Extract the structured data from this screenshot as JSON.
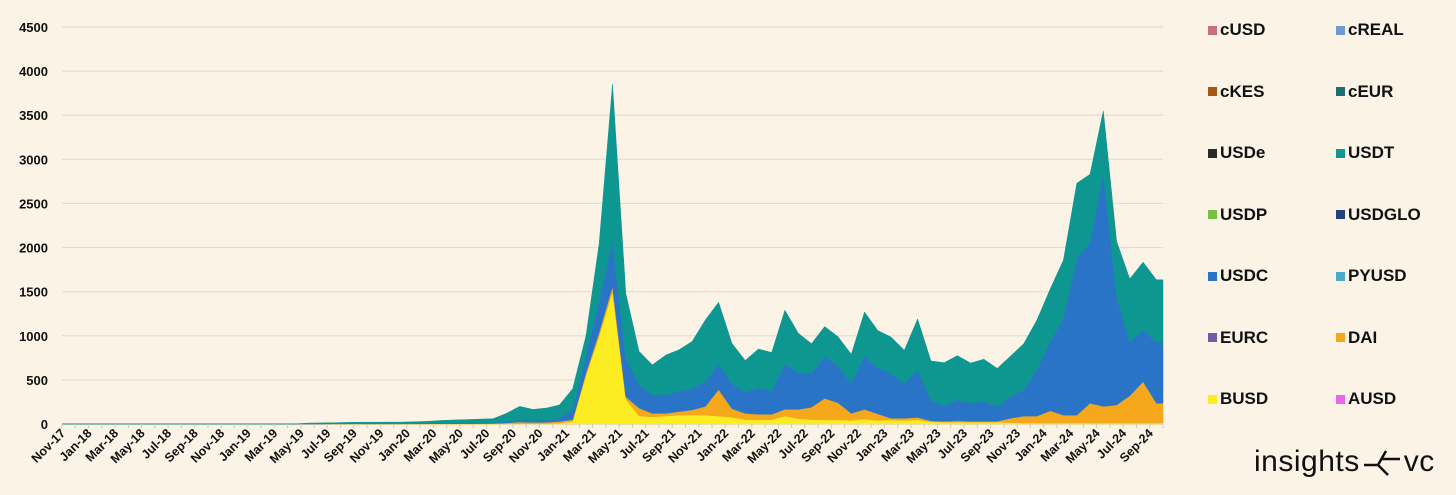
{
  "chart_data": {
    "type": "area",
    "stacked": true,
    "title": "",
    "xlabel": "",
    "ylabel": "",
    "ylim": [
      0,
      4500
    ],
    "yticks": [
      0,
      500,
      1000,
      1500,
      2000,
      2500,
      3000,
      3500,
      4000,
      4500
    ],
    "grid": true,
    "legend_position": "right",
    "start_month": "Nov-17",
    "months": [
      "Nov-17",
      "Dec-17",
      "Jan-18",
      "Feb-18",
      "Mar-18",
      "Apr-18",
      "May-18",
      "Jun-18",
      "Jul-18",
      "Aug-18",
      "Sep-18",
      "Oct-18",
      "Nov-18",
      "Dec-18",
      "Jan-19",
      "Feb-19",
      "Mar-19",
      "Apr-19",
      "May-19",
      "Jun-19",
      "Jul-19",
      "Aug-19",
      "Sep-19",
      "Oct-19",
      "Nov-19",
      "Dec-19",
      "Jan-20",
      "Feb-20",
      "Mar-20",
      "Apr-20",
      "May-20",
      "Jun-20",
      "Jul-20",
      "Aug-20",
      "Sep-20",
      "Oct-20",
      "Nov-20",
      "Dec-20",
      "Jan-21",
      "Feb-21",
      "Mar-21",
      "Apr-21",
      "May-21",
      "Jun-21",
      "Jul-21",
      "Aug-21",
      "Sep-21",
      "Oct-21",
      "Nov-21",
      "Dec-21",
      "Jan-22",
      "Feb-22",
      "Mar-22",
      "Apr-22",
      "May-22",
      "Jun-22",
      "Jul-22",
      "Aug-22",
      "Sep-22",
      "Oct-22",
      "Nov-22",
      "Dec-22",
      "Jan-23",
      "Feb-23",
      "Mar-23",
      "Apr-23",
      "May-23",
      "Jun-23",
      "Jul-23",
      "Aug-23",
      "Sep-23",
      "Oct-23",
      "Nov-23",
      "Dec-23",
      "Jan-24",
      "Feb-24",
      "Mar-24",
      "Apr-24",
      "May-24",
      "Jun-24",
      "Jul-24",
      "Aug-24",
      "Sep-24"
    ],
    "xtick_labels": [
      "Nov-17",
      "Jan-18",
      "Mar-18",
      "May-18",
      "Jul-18",
      "Sep-18",
      "Nov-18",
      "Jan-19",
      "Mar-19",
      "May-19",
      "Jul-19",
      "Sep-19",
      "Nov-19",
      "Jan-20",
      "Mar-20",
      "May-20",
      "Jul-20",
      "Sep-20",
      "Nov-20",
      "Jan-21",
      "Mar-21",
      "May-21",
      "Jul-21",
      "Sep-21",
      "Nov-21",
      "Jan-22",
      "Mar-22",
      "May-22",
      "Jul-22",
      "Sep-22",
      "Nov-22",
      "Jan-23",
      "Mar-23",
      "May-23",
      "Jul-23",
      "Sep-23",
      "Nov-23",
      "Jan-24",
      "Mar-24",
      "May-24",
      "Jul-24",
      "Sep-24"
    ],
    "series": [
      {
        "name": "BUSD",
        "color": "#fced22",
        "values": [
          0,
          0,
          0,
          0,
          0,
          0,
          0,
          0,
          0,
          0,
          0,
          0,
          0,
          0,
          0,
          0,
          0,
          0,
          0,
          0,
          0,
          0,
          0,
          0,
          0,
          0,
          0,
          0,
          0,
          0,
          0,
          0,
          1,
          2,
          3,
          3,
          4,
          8,
          30,
          550,
          1000,
          1500,
          280,
          90,
          80,
          90,
          100,
          100,
          100,
          90,
          75,
          50,
          45,
          50,
          90,
          60,
          50,
          45,
          45,
          40,
          55,
          40,
          45,
          40,
          45,
          25,
          20,
          20,
          20,
          20,
          20,
          15,
          10,
          10,
          10,
          10,
          10,
          10,
          10,
          10,
          10,
          10,
          10
        ]
      },
      {
        "name": "DAI",
        "color": "#f5a81c",
        "values": [
          0,
          0,
          0,
          0,
          0,
          0,
          0,
          0,
          0,
          0,
          0,
          0,
          0,
          0,
          0,
          0,
          0,
          0,
          0,
          0,
          1,
          1,
          1,
          1,
          1,
          1,
          2,
          2,
          3,
          3,
          3,
          4,
          5,
          10,
          20,
          15,
          15,
          20,
          20,
          30,
          40,
          60,
          30,
          90,
          40,
          30,
          40,
          60,
          100,
          300,
          100,
          70,
          65,
          60,
          75,
          105,
          140,
          245,
          195,
          80,
          110,
          75,
          20,
          25,
          30,
          10,
          10,
          15,
          10,
          10,
          10,
          50,
          80,
          80,
          140,
          90,
          90,
          225,
          190,
          205,
          310,
          470,
          225
        ]
      },
      {
        "name": "USDC",
        "color": "#2a74c8",
        "values": [
          0,
          0,
          0,
          0,
          0,
          0,
          0,
          0,
          0,
          0,
          0,
          0,
          0,
          0,
          0,
          0,
          0,
          0,
          1,
          1,
          2,
          2,
          2,
          2,
          3,
          3,
          3,
          4,
          5,
          6,
          7,
          8,
          9,
          15,
          22,
          20,
          25,
          40,
          110,
          200,
          350,
          510,
          440,
          265,
          210,
          210,
          230,
          245,
          280,
          290,
          285,
          240,
          300,
          265,
          515,
          420,
          385,
          475,
          420,
          340,
          605,
          520,
          510,
          390,
          540,
          235,
          175,
          240,
          205,
          225,
          165,
          245,
          295,
          525,
          785,
          1100,
          1780,
          1825,
          2650,
          1230,
          605,
          590,
          690
        ]
      },
      {
        "name": "USDT",
        "color": "#0e9690",
        "values": [
          0,
          0,
          0,
          0,
          0,
          0,
          0,
          0,
          0,
          0,
          0,
          0,
          0,
          0,
          0,
          0,
          0,
          0,
          9,
          11,
          12,
          15,
          17,
          17,
          18,
          18,
          20,
          24,
          32,
          36,
          40,
          43,
          45,
          93,
          155,
          127,
          136,
          147,
          240,
          220,
          660,
          1780,
          730,
          380,
          340,
          450,
          470,
          530,
          700,
          700,
          455,
          360,
          440,
          435,
          610,
          445,
          335,
          340,
          330,
          330,
          500,
          425,
          410,
          380,
          575,
          445,
          490,
          500,
          455,
          480,
          435,
          460,
          525,
          565,
          595,
          660,
          850,
          770,
          700,
          625,
          720,
          765,
          710
        ]
      }
    ],
    "legend": [
      {
        "name": "cUSD",
        "color": "#c8707a"
      },
      {
        "name": "cREAL",
        "color": "#6f9bd4"
      },
      {
        "name": "cKES",
        "color": "#a85612"
      },
      {
        "name": "cEUR",
        "color": "#1f6b78"
      },
      {
        "name": "USDe",
        "color": "#2a2a2a"
      },
      {
        "name": "USDT",
        "color": "#0e9690"
      },
      {
        "name": "USDP",
        "color": "#76c043"
      },
      {
        "name": "USDGLO",
        "color": "#21457a"
      },
      {
        "name": "USDC",
        "color": "#2a74c8"
      },
      {
        "name": "PYUSD",
        "color": "#4aa9c8"
      },
      {
        "name": "EURC",
        "color": "#7059a8"
      },
      {
        "name": "DAI",
        "color": "#f5a81c"
      },
      {
        "name": "BUSD",
        "color": "#fced22"
      },
      {
        "name": "AUSD",
        "color": "#e866e8"
      }
    ]
  },
  "logo": {
    "left": "insights",
    "right": "vc"
  }
}
